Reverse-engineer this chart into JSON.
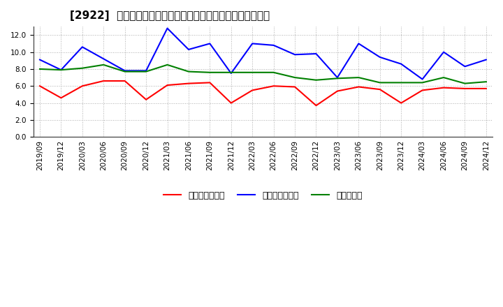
{
  "title": "[2922]  売上債権回転率、買入債務回転率、在庫回転率の推移",
  "x_labels": [
    "2019/09",
    "2019/12",
    "2020/03",
    "2020/06",
    "2020/09",
    "2020/12",
    "2021/03",
    "2021/06",
    "2021/09",
    "2021/12",
    "2022/03",
    "2022/06",
    "2022/09",
    "2022/12",
    "2023/03",
    "2023/06",
    "2023/09",
    "2023/12",
    "2024/03",
    "2024/06",
    "2024/09",
    "2024/12"
  ],
  "sell_receivables": [
    6.0,
    4.6,
    6.0,
    6.6,
    6.6,
    4.4,
    6.1,
    6.3,
    6.4,
    4.0,
    5.5,
    6.0,
    5.9,
    3.7,
    5.4,
    5.9,
    5.6,
    4.0,
    5.5,
    5.8,
    5.7,
    5.7
  ],
  "buy_payables": [
    9.1,
    7.9,
    10.6,
    9.2,
    7.8,
    7.8,
    12.8,
    10.3,
    11.0,
    7.5,
    11.0,
    10.8,
    9.7,
    9.8,
    7.0,
    11.0,
    9.4,
    8.6,
    6.8,
    10.0,
    8.3,
    9.1
  ],
  "inventory": [
    8.0,
    7.9,
    8.1,
    8.5,
    7.7,
    7.7,
    8.5,
    7.7,
    7.6,
    7.6,
    7.6,
    7.6,
    7.0,
    6.7,
    6.9,
    7.0,
    6.4,
    6.4,
    6.4,
    7.0,
    6.3,
    6.5
  ],
  "sell_color": "#ff0000",
  "buy_color": "#0000ff",
  "inv_color": "#008000",
  "ylim": [
    0,
    13.0
  ],
  "yticks": [
    0.0,
    2.0,
    4.0,
    6.0,
    8.0,
    10.0,
    12.0
  ],
  "legend_sell": "売上債権回転率",
  "legend_buy": "買入債務回転率",
  "legend_inv": "在庫回転率",
  "bg_color": "#ffffff",
  "grid_color": "#999999",
  "title_fontsize": 11,
  "tick_fontsize": 7.5,
  "legend_fontsize": 9
}
